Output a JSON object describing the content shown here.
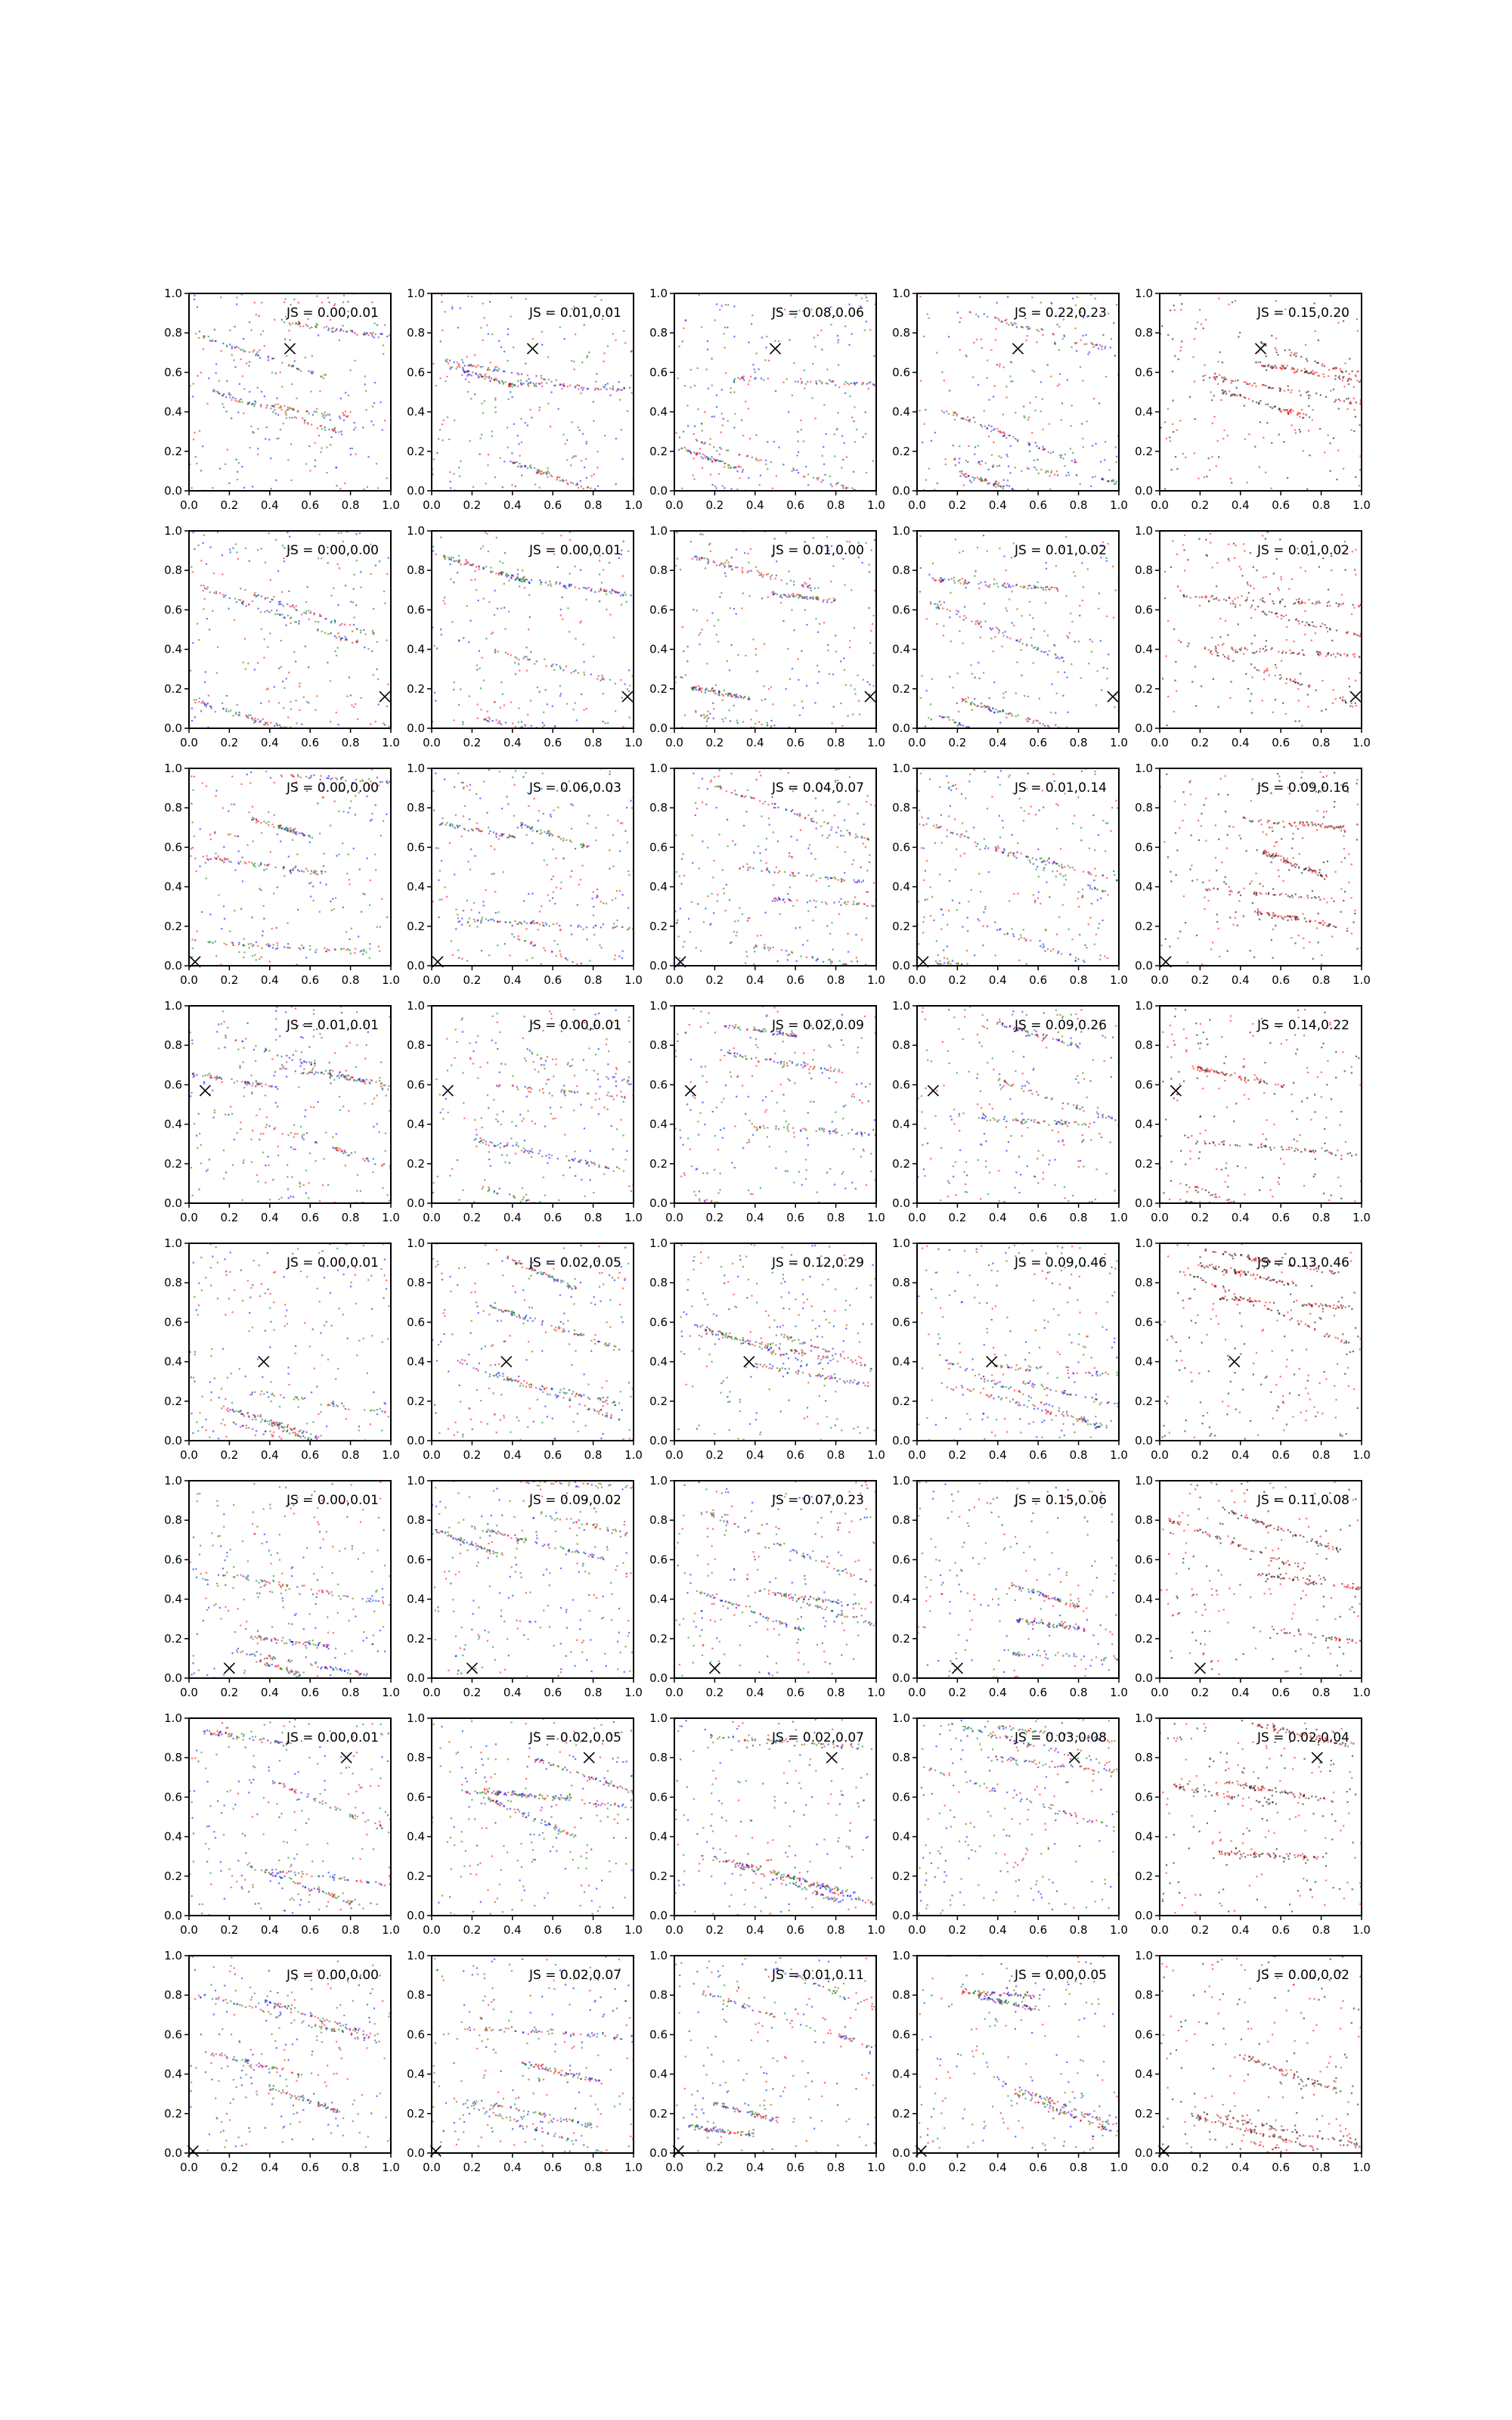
{
  "chart_data": {
    "type": "scatter",
    "layout": {
      "rows": 8,
      "cols": 5
    },
    "xlim": [
      0,
      1
    ],
    "ylim": [
      0,
      1
    ],
    "xticks": [
      "0.0",
      "0.2",
      "0.4",
      "0.6",
      "0.8",
      "1.0"
    ],
    "yticks": [
      "0.0",
      "0.2",
      "0.4",
      "0.6",
      "0.8",
      "1.0"
    ],
    "grid": false,
    "colors": {
      "red": "#ff0000",
      "green": "#008000",
      "blue": "#0000ff",
      "black": "#000000"
    },
    "column_series_colors": [
      [
        "red",
        "green",
        "blue"
      ],
      [
        "red",
        "green",
        "blue"
      ],
      [
        "red",
        "green",
        "blue"
      ],
      [
        "red",
        "green",
        "blue"
      ],
      [
        "black",
        "red"
      ]
    ],
    "row_markers": [
      {
        "x": 0.5,
        "y": 0.72
      },
      {
        "x": 0.97,
        "y": 0.16
      },
      {
        "x": 0.03,
        "y": 0.02
      },
      {
        "x": 0.08,
        "y": 0.57
      },
      {
        "x": 0.37,
        "y": 0.4
      },
      {
        "x": 0.2,
        "y": 0.05
      },
      {
        "x": 0.78,
        "y": 0.8
      },
      {
        "x": 0.02,
        "y": 0.01
      }
    ],
    "panel_labels": [
      [
        "JS = 0.00,0.01",
        "JS = 0.01,0.01",
        "JS = 0.08,0.06",
        "JS = 0.22,0.23",
        "JS = 0.15,0.20"
      ],
      [
        "JS = 0.00,0.00",
        "JS = 0.00,0.01",
        "JS = 0.01,0.00",
        "JS = 0.01,0.02",
        "JS = 0.01,0.02"
      ],
      [
        "JS = 0.00,0.00",
        "JS = 0.06,0.03",
        "JS = 0.04,0.07",
        "JS = 0.01,0.14",
        "JS = 0.09,0.16"
      ],
      [
        "JS = 0.01,0.01",
        "JS = 0.00,0.01",
        "JS = 0.02,0.09",
        "JS = 0.09,0.26",
        "JS = 0.14,0.22"
      ],
      [
        "JS = 0.00,0.01",
        "JS = 0.02,0.05",
        "JS = 0.12,0.29",
        "JS = 0.09,0.46",
        "JS = 0.13,0.46"
      ],
      [
        "JS = 0.00,0.01",
        "JS = 0.09,0.02",
        "JS = 0.07,0.23",
        "JS = 0.15,0.06",
        "JS = 0.11,0.08"
      ],
      [
        "JS = 0.00,0.01",
        "JS = 0.02,0.05",
        "JS = 0.02,0.07",
        "JS = 0.03,0.08",
        "JS = 0.02,0.04"
      ],
      [
        "JS = 0.00,0.00",
        "JS = 0.02,0.07",
        "JS = 0.01,0.11",
        "JS = 0.00,0.05",
        "JS = 0.00,0.02"
      ]
    ]
  }
}
